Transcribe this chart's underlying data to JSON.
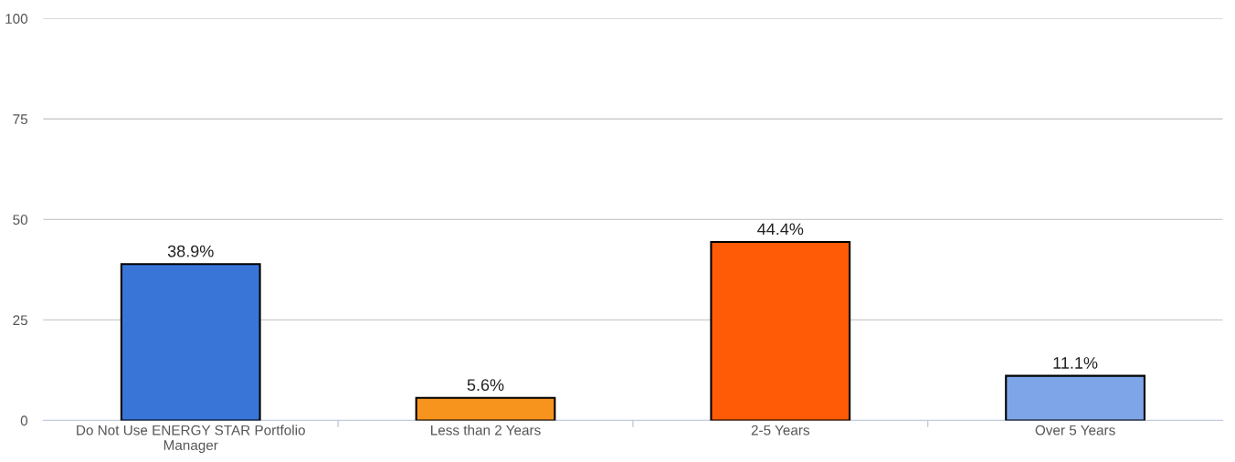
{
  "chart_data": {
    "type": "bar",
    "categories": [
      "Do Not Use ENERGY STAR Portfolio\nManager",
      "Less than 2 Years",
      "2-5 Years",
      "Over 5 Years"
    ],
    "values": [
      38.9,
      5.6,
      44.4,
      11.1
    ],
    "value_labels": [
      "38.9%",
      "5.6%",
      "44.4%",
      "11.1%"
    ],
    "colors": [
      "#3875d7",
      "#f7941d",
      "#ff5a05",
      "#7ea5e8"
    ],
    "ylim": [
      0,
      100
    ],
    "yticks": [
      0,
      25,
      50,
      75,
      100
    ],
    "grid": "y",
    "legend": false
  }
}
